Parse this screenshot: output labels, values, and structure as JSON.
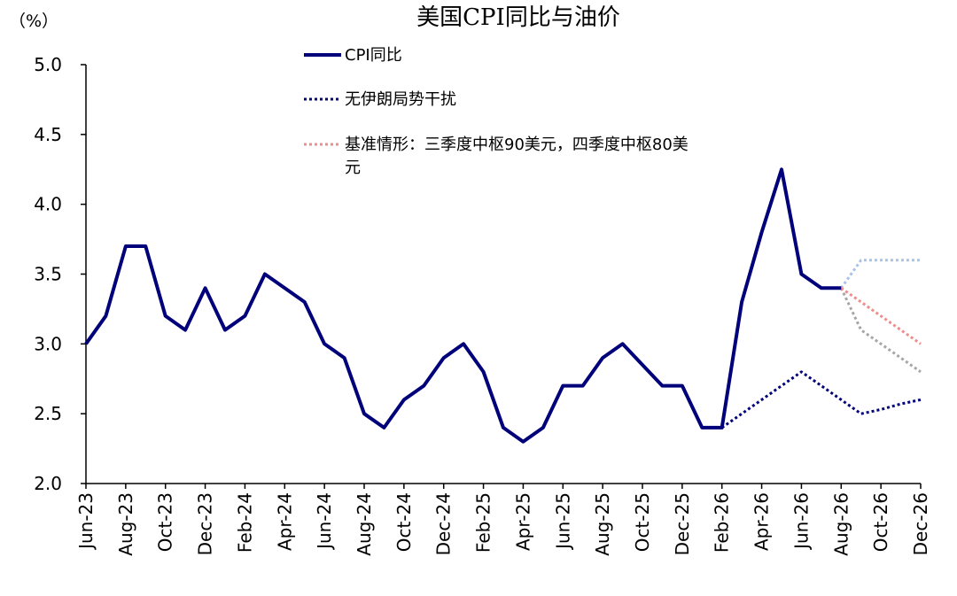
{
  "chart_data": {
    "type": "line",
    "title": "美国CPI同比与油价",
    "ylabel": "（%）",
    "ylim": [
      2.0,
      5.0
    ],
    "yticks": [
      "2.0",
      "2.5",
      "3.0",
      "3.5",
      "4.0",
      "4.5",
      "5.0"
    ],
    "grid": false,
    "x": [
      "Jun-23",
      "Jul-23",
      "Aug-23",
      "Sep-23",
      "Oct-23",
      "Nov-23",
      "Dec-23",
      "Jan-24",
      "Feb-24",
      "Mar-24",
      "Apr-24",
      "May-24",
      "Jun-24",
      "Jul-24",
      "Aug-24",
      "Sep-24",
      "Oct-24",
      "Nov-24",
      "Dec-24",
      "Jan-25",
      "Feb-25",
      "Mar-25",
      "Apr-25",
      "May-25",
      "Jun-25",
      "Jul-25",
      "Aug-25",
      "Sep-25",
      "Oct-25",
      "Nov-25",
      "Dec-25",
      "Jan-26",
      "Feb-26",
      "Mar-26",
      "Apr-26",
      "May-26",
      "Jun-26",
      "Jul-26",
      "Aug-26",
      "Sep-26",
      "Oct-26",
      "Nov-26",
      "Dec-26"
    ],
    "xtick_labels": [
      "Jun-23",
      "Aug-23",
      "Oct-23",
      "Dec-23",
      "Feb-24",
      "Apr-24",
      "Jun-24",
      "Aug-24",
      "Oct-24",
      "Dec-24",
      "Feb-25",
      "Apr-25",
      "Jun-25",
      "Aug-25",
      "Oct-25",
      "Dec-25",
      "Feb-26",
      "Apr-26",
      "Jun-26",
      "Aug-26",
      "Oct-26",
      "Dec-26"
    ],
    "series": [
      {
        "name": "CPI同比",
        "style": "solid",
        "color": "#00007a",
        "points": [
          [
            "Jun-23",
            3.0
          ],
          [
            "Jul-23",
            3.2
          ],
          [
            "Aug-23",
            3.7
          ],
          [
            "Sep-23",
            3.7
          ],
          [
            "Oct-23",
            3.2
          ],
          [
            "Nov-23",
            3.1
          ],
          [
            "Dec-23",
            3.4
          ],
          [
            "Jan-24",
            3.1
          ],
          [
            "Feb-24",
            3.2
          ],
          [
            "Mar-24",
            3.5
          ],
          [
            "Apr-24",
            3.4
          ],
          [
            "May-24",
            3.3
          ],
          [
            "Jun-24",
            3.0
          ],
          [
            "Jul-24",
            2.9
          ],
          [
            "Aug-24",
            2.5
          ],
          [
            "Sep-24",
            2.4
          ],
          [
            "Oct-24",
            2.6
          ],
          [
            "Nov-24",
            2.7
          ],
          [
            "Dec-24",
            2.9
          ],
          [
            "Jan-25",
            3.0
          ],
          [
            "Feb-25",
            2.8
          ],
          [
            "Mar-25",
            2.4
          ],
          [
            "Apr-25",
            2.3
          ],
          [
            "May-25",
            2.4
          ],
          [
            "Jun-25",
            2.7
          ],
          [
            "Jul-25",
            2.7
          ],
          [
            "Aug-25",
            2.9
          ],
          [
            "Sep-25",
            3.0
          ],
          [
            "Oct-25",
            2.85
          ],
          [
            "Nov-25",
            2.7
          ],
          [
            "Dec-25",
            2.7
          ],
          [
            "Jan-26",
            2.4
          ],
          [
            "Feb-26",
            2.4
          ],
          [
            "Mar-26",
            3.3
          ],
          [
            "Apr-26",
            3.8
          ],
          [
            "May-26",
            4.25
          ],
          [
            "Jun-26",
            3.5
          ],
          [
            "Jul-26",
            3.4
          ],
          [
            "Aug-26",
            3.4
          ]
        ]
      },
      {
        "name": "无伊朗局势干扰",
        "style": "dotted",
        "color": "#00007a",
        "points": [
          [
            "Feb-26",
            2.4
          ],
          [
            "Mar-26",
            2.5
          ],
          [
            "Apr-26",
            2.6
          ],
          [
            "May-26",
            2.7
          ],
          [
            "Jun-26",
            2.8
          ],
          [
            "Jul-26",
            2.7
          ],
          [
            "Aug-26",
            2.6
          ],
          [
            "Sep-26",
            2.5
          ],
          [
            "Oct-26",
            2.53
          ],
          [
            "Nov-26",
            2.57
          ],
          [
            "Dec-26",
            2.6
          ]
        ]
      },
      {
        "name": "基准情形：三季度中枢90美元，四季度中枢80美元",
        "style": "dotted",
        "color": "#f08c8c",
        "points": [
          [
            "Aug-26",
            3.4
          ],
          [
            "Sep-26",
            3.3
          ],
          [
            "Oct-26",
            3.2
          ],
          [
            "Nov-26",
            3.1
          ],
          [
            "Dec-26",
            3.0
          ]
        ]
      },
      {
        "name": "",
        "style": "dotted",
        "color": "#a9c3e6",
        "points": [
          [
            "Aug-26",
            3.4
          ],
          [
            "Sep-26",
            3.6
          ],
          [
            "Oct-26",
            3.6
          ],
          [
            "Nov-26",
            3.6
          ],
          [
            "Dec-26",
            3.6
          ]
        ]
      },
      {
        "name": "",
        "style": "dotted",
        "color": "#a6a6a6",
        "points": [
          [
            "Aug-26",
            3.4
          ],
          [
            "Sep-26",
            3.1
          ],
          [
            "Oct-26",
            3.0
          ],
          [
            "Nov-26",
            2.9
          ],
          [
            "Dec-26",
            2.8
          ]
        ]
      }
    ],
    "legend": [
      {
        "label": "CPI同比",
        "style": "solid",
        "color": "#00007a"
      },
      {
        "label": "无伊朗局势干扰",
        "style": "dotted",
        "color": "#00007a"
      },
      {
        "label_lines": [
          "基准情形：三季度中枢90美元，四季度中枢80美",
          "元"
        ],
        "style": "dotted",
        "color": "#f08c8c"
      }
    ]
  }
}
